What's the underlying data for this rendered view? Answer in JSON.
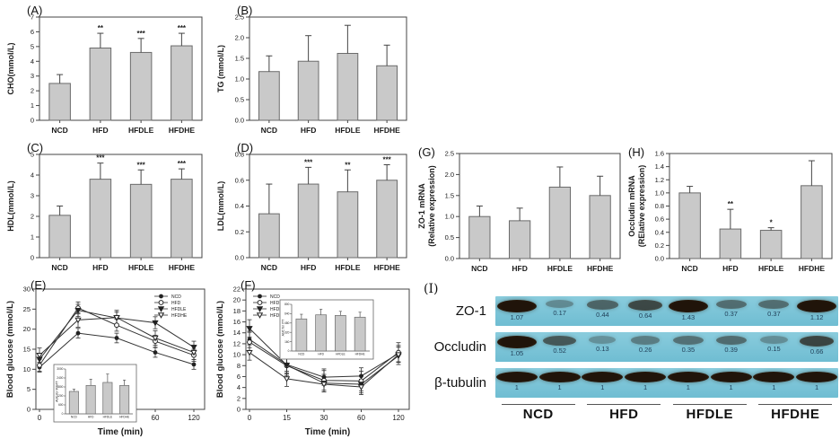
{
  "colors": {
    "bar_fill": "#c9c9c9",
    "bar_stroke": "#6b6b6b",
    "axis": "#444444",
    "text": "#1a1a1a",
    "blot_bg_top": "#8accdd",
    "blot_bg_bottom": "#6fbdd2",
    "blot_band": "#20140a",
    "blot_number": "#1f3d55"
  },
  "groups": [
    "NCD",
    "HFD",
    "HFDLE",
    "HFDHE"
  ],
  "chart_data": [
    {
      "id": "A",
      "type": "bar",
      "title": "(A)",
      "ylabel": [
        "CHO(mmol/L)"
      ],
      "ylim": [
        0,
        7
      ],
      "ystep": 1,
      "ydec": 0,
      "categories": [
        "NCD",
        "HFD",
        "HFDLE",
        "HFDHE"
      ],
      "values": [
        2.5,
        4.9,
        4.6,
        5.05
      ],
      "errors": [
        0.6,
        1.0,
        0.95,
        0.85
      ],
      "sig": [
        "",
        "**",
        "***",
        "***"
      ]
    },
    {
      "id": "B",
      "type": "bar",
      "title": "(B)",
      "ylabel": [
        "TG (mmol/L)"
      ],
      "ylim": [
        0,
        2.5
      ],
      "ystep": 0.5,
      "ydec": 1,
      "categories": [
        "NCD",
        "HFD",
        "HFDLE",
        "HFDHE"
      ],
      "values": [
        1.18,
        1.43,
        1.62,
        1.32
      ],
      "errors": [
        0.38,
        0.62,
        0.68,
        0.5
      ],
      "sig": [
        "",
        "",
        "",
        ""
      ]
    },
    {
      "id": "C",
      "type": "bar",
      "title": "(C)",
      "ylabel": [
        "HDL(mmol/L)"
      ],
      "ylim": [
        0,
        5
      ],
      "ystep": 1,
      "ydec": 0,
      "categories": [
        "NCD",
        "HFD",
        "HFDLE",
        "HFDHE"
      ],
      "values": [
        2.05,
        3.8,
        3.55,
        3.8
      ],
      "errors": [
        0.45,
        0.78,
        0.7,
        0.5
      ],
      "sig": [
        "",
        "***",
        "***",
        "***"
      ]
    },
    {
      "id": "D",
      "type": "bar",
      "title": "(D)",
      "ylabel": [
        "LDL(mmol/L)"
      ],
      "ylim": [
        0,
        0.8
      ],
      "ystep": 0.2,
      "ydec": 1,
      "categories": [
        "NCD",
        "HFD",
        "HFDLE",
        "HFDHE"
      ],
      "values": [
        0.34,
        0.57,
        0.51,
        0.6
      ],
      "errors": [
        0.23,
        0.13,
        0.17,
        0.12
      ],
      "sig": [
        "",
        "***",
        "**",
        "***"
      ]
    },
    {
      "id": "E",
      "type": "line",
      "title": "(E)",
      "ylabel": "Blood glucose (mmol/L)",
      "xlabel": "Time (min)",
      "ylim": [
        0,
        30
      ],
      "ystep": 5,
      "x": [
        0,
        15,
        30,
        60,
        120
      ],
      "legend_pos": "top-right",
      "series": [
        {
          "name": "NCD",
          "marker": "circle-filled",
          "values": [
            10.5,
            19.0,
            17.8,
            14.2,
            11.2
          ],
          "err": 1.2
        },
        {
          "name": "HFD",
          "marker": "circle-open",
          "values": [
            11.0,
            25.3,
            21.0,
            17.0,
            13.5
          ],
          "err": 1.5
        },
        {
          "name": "HFDLE",
          "marker": "triangle-filled",
          "values": [
            12.5,
            24.7,
            22.8,
            21.6,
            15.5
          ],
          "err": 1.5
        },
        {
          "name": "HFDHE",
          "marker": "triangle-open",
          "values": [
            13.5,
            22.3,
            22.9,
            17.8,
            14.2
          ],
          "err": 1.8
        }
      ],
      "inset": {
        "ylabel": "AUC for IPGTT",
        "categories": [
          "NCD",
          "HFD",
          "HFDLE",
          "HFDHE"
        ],
        "values": [
          1500,
          1900,
          2100,
          1900
        ],
        "errors": [
          150,
          420,
          560,
          360
        ],
        "ylim": [
          0,
          3000
        ]
      }
    },
    {
      "id": "F",
      "type": "line",
      "title": "(F)",
      "ylabel": "Blood glucose (mmol/L)",
      "xlabel": "Time (min)",
      "ylim": [
        0,
        22
      ],
      "ystep": 2,
      "x": [
        0,
        15,
        30,
        60,
        120
      ],
      "legend_pos": "top-left",
      "series": [
        {
          "name": "NCD",
          "marker": "circle-filled",
          "values": [
            12.8,
            8.2,
            5.9,
            6.1,
            10.2
          ],
          "err": 1.5
        },
        {
          "name": "HFD",
          "marker": "circle-open",
          "values": [
            12.3,
            8.0,
            5.3,
            5.2,
            10.4
          ],
          "err": 1.8
        },
        {
          "name": "HFDLE",
          "marker": "triangle-filled",
          "values": [
            14.8,
            8.1,
            4.8,
            4.6,
            9.8
          ],
          "err": 1.6
        },
        {
          "name": "HFDHE",
          "marker": "triangle-open",
          "values": [
            10.4,
            5.6,
            4.6,
            4.1,
            10.0
          ],
          "err": 1.4
        }
      ],
      "inset": {
        "ylabel": "AUC for ITT",
        "categories": [
          "NCD",
          "HFD",
          "HFDLE",
          "HFDHE"
        ],
        "values": [
          550,
          620,
          610,
          580
        ],
        "errors": [
          80,
          95,
          70,
          85
        ],
        "ylim": [
          0,
          800
        ]
      }
    },
    {
      "id": "G",
      "type": "bar",
      "title": "(G)",
      "ylabel": [
        "ZO-1 mRNA",
        "(Relative expression)"
      ],
      "ylim": [
        0,
        2.5
      ],
      "ystep": 0.5,
      "ydec": 1,
      "categories": [
        "NCD",
        "HFD",
        "HFDLE",
        "HFDHE"
      ],
      "values": [
        1.0,
        0.9,
        1.7,
        1.5
      ],
      "errors": [
        0.25,
        0.3,
        0.48,
        0.46
      ],
      "sig": [
        "",
        "",
        "",
        ""
      ]
    },
    {
      "id": "H",
      "type": "bar",
      "title": "(H)",
      "ylabel": [
        "Occludin mRNA",
        "(RElative expression)"
      ],
      "ylim": [
        0,
        1.6
      ],
      "ystep": 0.2,
      "ydec": 1,
      "categories": [
        "NCD",
        "HFD",
        "HFDLE",
        "HFDHE"
      ],
      "values": [
        1.0,
        0.45,
        0.43,
        1.11
      ],
      "errors": [
        0.1,
        0.3,
        0.04,
        0.38
      ],
      "sig": [
        "",
        "**",
        "*",
        ""
      ]
    },
    {
      "id": "I",
      "type": "blot",
      "title": "(I)",
      "rows": [
        {
          "name": "ZO-1",
          "values": [
            "1.07",
            "0.17",
            "0.44",
            "0.64",
            "1.43",
            "0.37",
            "0.37",
            "1.12"
          ]
        },
        {
          "name": "Occludin",
          "values": [
            "1.05",
            "0.52",
            "0.13",
            "0.26",
            "0.35",
            "0.39",
            "0.15",
            "0.66"
          ]
        },
        {
          "name": "β-tubulin",
          "values": [
            "1",
            "1",
            "1",
            "1",
            "1",
            "1",
            "1",
            "1"
          ]
        }
      ],
      "groups": [
        "NCD",
        "HFD",
        "HFDLE",
        "HFDHE"
      ]
    }
  ]
}
